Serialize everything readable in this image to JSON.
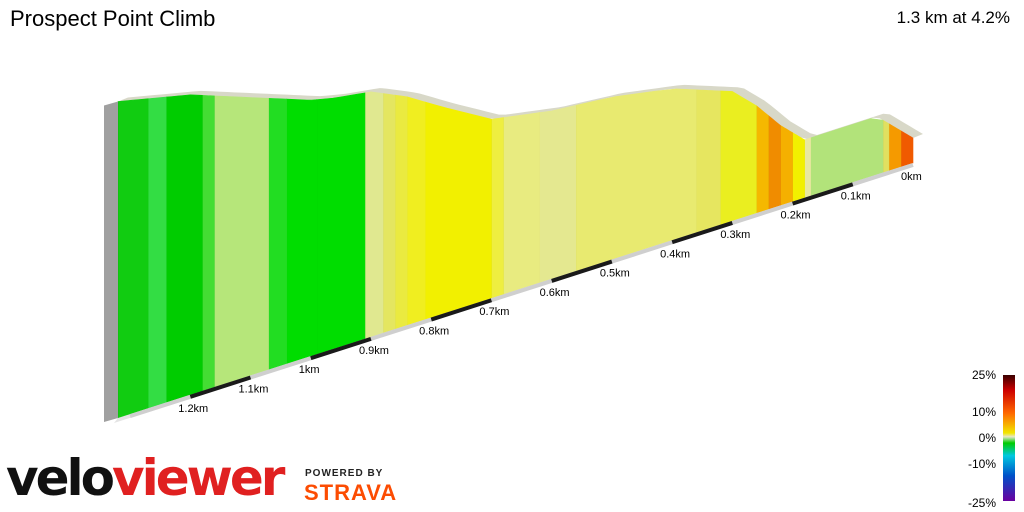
{
  "header": {
    "title": "Prospect Point Climb",
    "summary": "1.3 km at 4.2%"
  },
  "legend": {
    "ticks": [
      "25%",
      "10%",
      "0%",
      "-10%",
      "-25%"
    ]
  },
  "brand": {
    "name_part1": "velo",
    "name_part2": "viewer",
    "powered_by": "POWERED BY",
    "partner": "STRAVA"
  },
  "chart_data": {
    "type": "area",
    "title": "Prospect Point Climb",
    "subtitle": "1.3 km at 4.2%",
    "x_unit": "km",
    "x_axis_direction": "right-to-left",
    "distance_ticks": [
      {
        "km": 0.0,
        "label": "0km"
      },
      {
        "km": 0.1,
        "label": "0.1km"
      },
      {
        "km": 0.2,
        "label": "0.2km"
      },
      {
        "km": 0.3,
        "label": "0.3km"
      },
      {
        "km": 0.4,
        "label": "0.4km"
      },
      {
        "km": 0.5,
        "label": "0.5km"
      },
      {
        "km": 0.6,
        "label": "0.6km"
      },
      {
        "km": 0.7,
        "label": "0.7km"
      },
      {
        "km": 0.8,
        "label": "0.8km"
      },
      {
        "km": 0.9,
        "label": "0.9km"
      },
      {
        "km": 1.0,
        "label": "1km"
      },
      {
        "km": 1.1,
        "label": "1.1km"
      },
      {
        "km": 1.2,
        "label": "1.2km"
      }
    ],
    "color_scale_ticks": [
      "25%",
      "10%",
      "0%",
      "-10%",
      "-25%"
    ],
    "segments": [
      {
        "from": 0.0,
        "to": 0.02,
        "color": "#f05a00"
      },
      {
        "from": 0.02,
        "to": 0.04,
        "color": "#f59a00"
      },
      {
        "from": 0.04,
        "to": 0.05,
        "color": "#e0e060"
      },
      {
        "from": 0.05,
        "to": 0.17,
        "color": "#b2e37a"
      },
      {
        "from": 0.17,
        "to": 0.18,
        "color": "#e8e8a0"
      },
      {
        "from": 0.18,
        "to": 0.2,
        "color": "#f2f000"
      },
      {
        "from": 0.2,
        "to": 0.22,
        "color": "#f5b000"
      },
      {
        "from": 0.22,
        "to": 0.24,
        "color": "#f08c00"
      },
      {
        "from": 0.24,
        "to": 0.26,
        "color": "#f5b800"
      },
      {
        "from": 0.26,
        "to": 0.32,
        "color": "#eaee20"
      },
      {
        "from": 0.32,
        "to": 0.36,
        "color": "#e6e660"
      },
      {
        "from": 0.36,
        "to": 0.56,
        "color": "#e8ea70"
      },
      {
        "from": 0.56,
        "to": 0.62,
        "color": "#e4e890"
      },
      {
        "from": 0.62,
        "to": 0.68,
        "color": "#e8eb80"
      },
      {
        "from": 0.68,
        "to": 0.7,
        "color": "#eeee40"
      },
      {
        "from": 0.7,
        "to": 0.81,
        "color": "#f2f000"
      },
      {
        "from": 0.81,
        "to": 0.84,
        "color": "#f0ee20"
      },
      {
        "from": 0.84,
        "to": 0.86,
        "color": "#eaea40"
      },
      {
        "from": 0.86,
        "to": 0.88,
        "color": "#e4e660"
      },
      {
        "from": 0.88,
        "to": 0.91,
        "color": "#e0e890"
      },
      {
        "from": 0.91,
        "to": 0.99,
        "color": "#00dd00"
      },
      {
        "from": 0.99,
        "to": 1.04,
        "color": "#00dd00"
      },
      {
        "from": 1.04,
        "to": 1.07,
        "color": "#22dd22"
      },
      {
        "from": 1.07,
        "to": 1.16,
        "color": "#b6e67a"
      },
      {
        "from": 1.16,
        "to": 1.18,
        "color": "#44dd33"
      },
      {
        "from": 1.18,
        "to": 1.24,
        "color": "#00cc00"
      },
      {
        "from": 1.24,
        "to": 1.27,
        "color": "#33dd44"
      },
      {
        "from": 1.27,
        "to": 1.32,
        "color": "#11cc11"
      }
    ],
    "relative_elevation_m": [
      {
        "km": 0.0,
        "m": 0
      },
      {
        "km": 0.03,
        "m": 3
      },
      {
        "km": 0.06,
        "m": 6
      },
      {
        "km": 0.15,
        "m": 6
      },
      {
        "km": 0.18,
        "m": 6
      },
      {
        "km": 0.22,
        "m": 10
      },
      {
        "km": 0.26,
        "m": 15
      },
      {
        "km": 0.3,
        "m": 19
      },
      {
        "km": 0.4,
        "m": 23
      },
      {
        "km": 0.5,
        "m": 25
      },
      {
        "km": 0.6,
        "m": 26
      },
      {
        "km": 0.7,
        "m": 28
      },
      {
        "km": 0.78,
        "m": 33
      },
      {
        "km": 0.84,
        "m": 37
      },
      {
        "km": 0.9,
        "m": 40
      },
      {
        "km": 0.96,
        "m": 41
      },
      {
        "km": 1.0,
        "m": 42
      },
      {
        "km": 1.1,
        "m": 46
      },
      {
        "km": 1.2,
        "m": 50
      },
      {
        "km": 1.32,
        "m": 53
      }
    ]
  }
}
